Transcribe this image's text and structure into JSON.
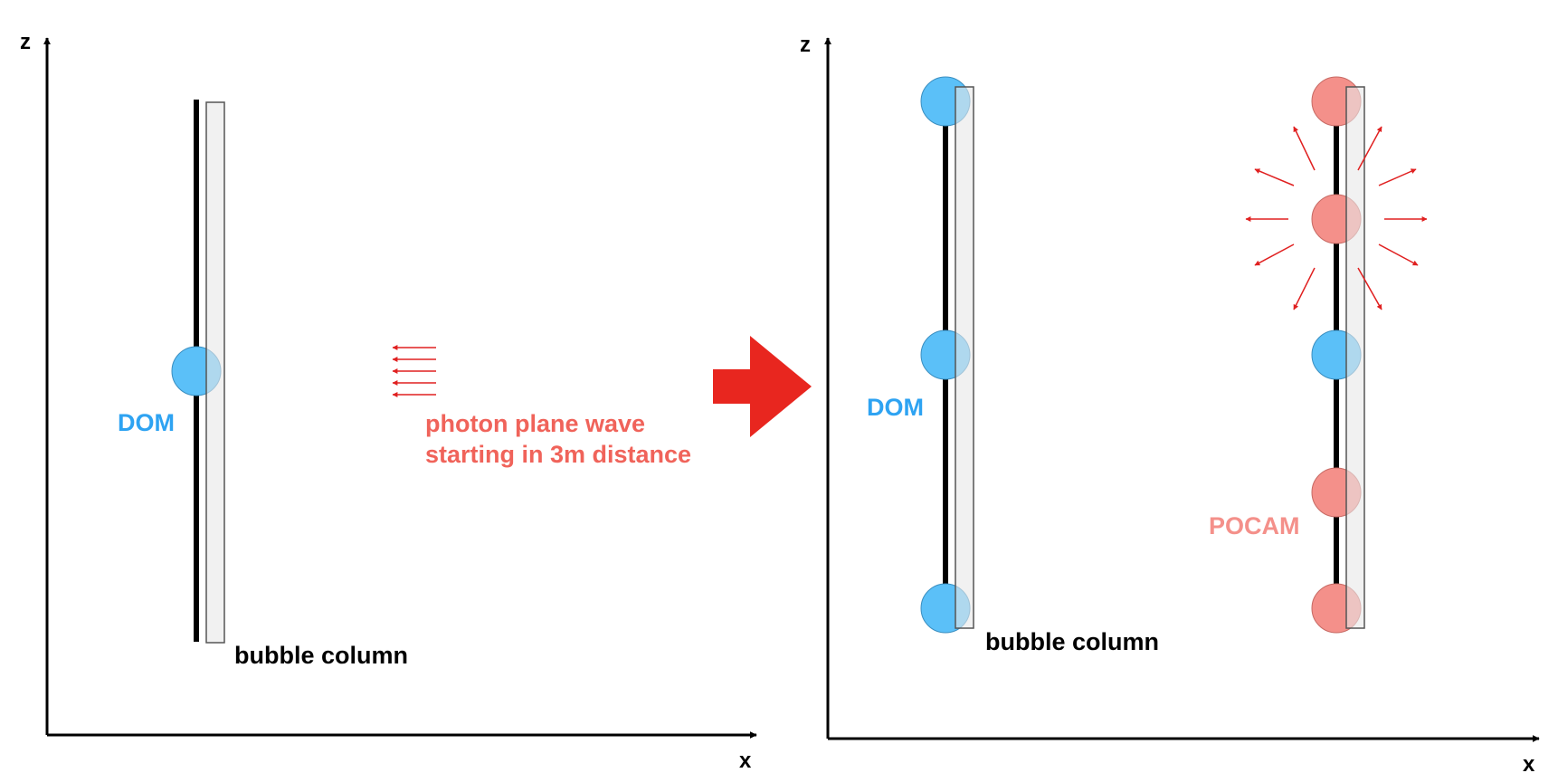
{
  "colors": {
    "dom_fill": "#5BC0F8",
    "pocam_fill": "#F4908A",
    "bubble_fill": "#E8E8E8",
    "arrow_red": "#E8261F",
    "photon_arrow": "#E02020",
    "dom_text": "#2EA3F2",
    "photon_text": "#F0635A",
    "pocam_text": "#F4908A"
  },
  "left_panel": {
    "axis_z_label": "z",
    "axis_x_label": "x",
    "dom_label": "DOM",
    "bubble_label": "bubble column",
    "photon_line1": "photon plane wave",
    "photon_line2": "starting in 3m distance",
    "dom_count": 1,
    "photon_arrow_count": 5
  },
  "transition_arrow": {
    "icon": "right-arrow-icon",
    "direction": "right"
  },
  "right_panel": {
    "axis_z_label": "z",
    "axis_x_label": "x",
    "dom_label": "DOM",
    "bubble_label": "bubble column",
    "pocam_label": "POCAM",
    "string_left": {
      "modules": [
        "DOM",
        "DOM",
        "DOM"
      ]
    },
    "string_right": {
      "modules": [
        "POCAM",
        "POCAM",
        "DOM",
        "POCAM",
        "POCAM"
      ],
      "emitting_module": 2,
      "emission_ray_count": 10
    }
  }
}
